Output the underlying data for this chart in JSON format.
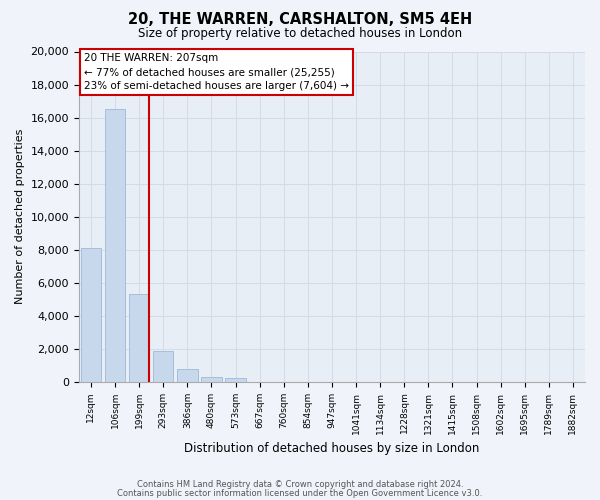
{
  "title": "20, THE WARREN, CARSHALTON, SM5 4EH",
  "subtitle": "Size of property relative to detached houses in London",
  "xlabel": "Distribution of detached houses by size in London",
  "ylabel": "Number of detached properties",
  "bar_labels": [
    "12sqm",
    "106sqm",
    "199sqm",
    "293sqm",
    "386sqm",
    "480sqm",
    "573sqm",
    "667sqm",
    "760sqm",
    "854sqm",
    "947sqm",
    "1041sqm",
    "1134sqm",
    "1228sqm",
    "1321sqm",
    "1415sqm",
    "1508sqm",
    "1602sqm",
    "1695sqm",
    "1789sqm",
    "1882sqm"
  ],
  "bar_values": [
    8100,
    16500,
    5300,
    1850,
    750,
    270,
    250,
    0,
    0,
    0,
    0,
    0,
    0,
    0,
    0,
    0,
    0,
    0,
    0,
    0,
    0
  ],
  "bar_color": "#c8d8ec",
  "bar_edge_color": "#a0b8d8",
  "highlight_line_color": "#cc0000",
  "highlight_bar_index": 2,
  "ylim": [
    0,
    20000
  ],
  "yticks": [
    0,
    2000,
    4000,
    6000,
    8000,
    10000,
    12000,
    14000,
    16000,
    18000,
    20000
  ],
  "annotation_line1": "20 THE WARREN: 207sqm",
  "annotation_line2": "← 77% of detached houses are smaller (25,255)",
  "annotation_line3": "23% of semi-detached houses are larger (7,604) →",
  "footer_line1": "Contains HM Land Registry data © Crown copyright and database right 2024.",
  "footer_line2": "Contains public sector information licensed under the Open Government Licence v3.0.",
  "grid_color": "#d0dcea",
  "background_color": "#e8eef6",
  "fig_background": "#f0f4fa"
}
